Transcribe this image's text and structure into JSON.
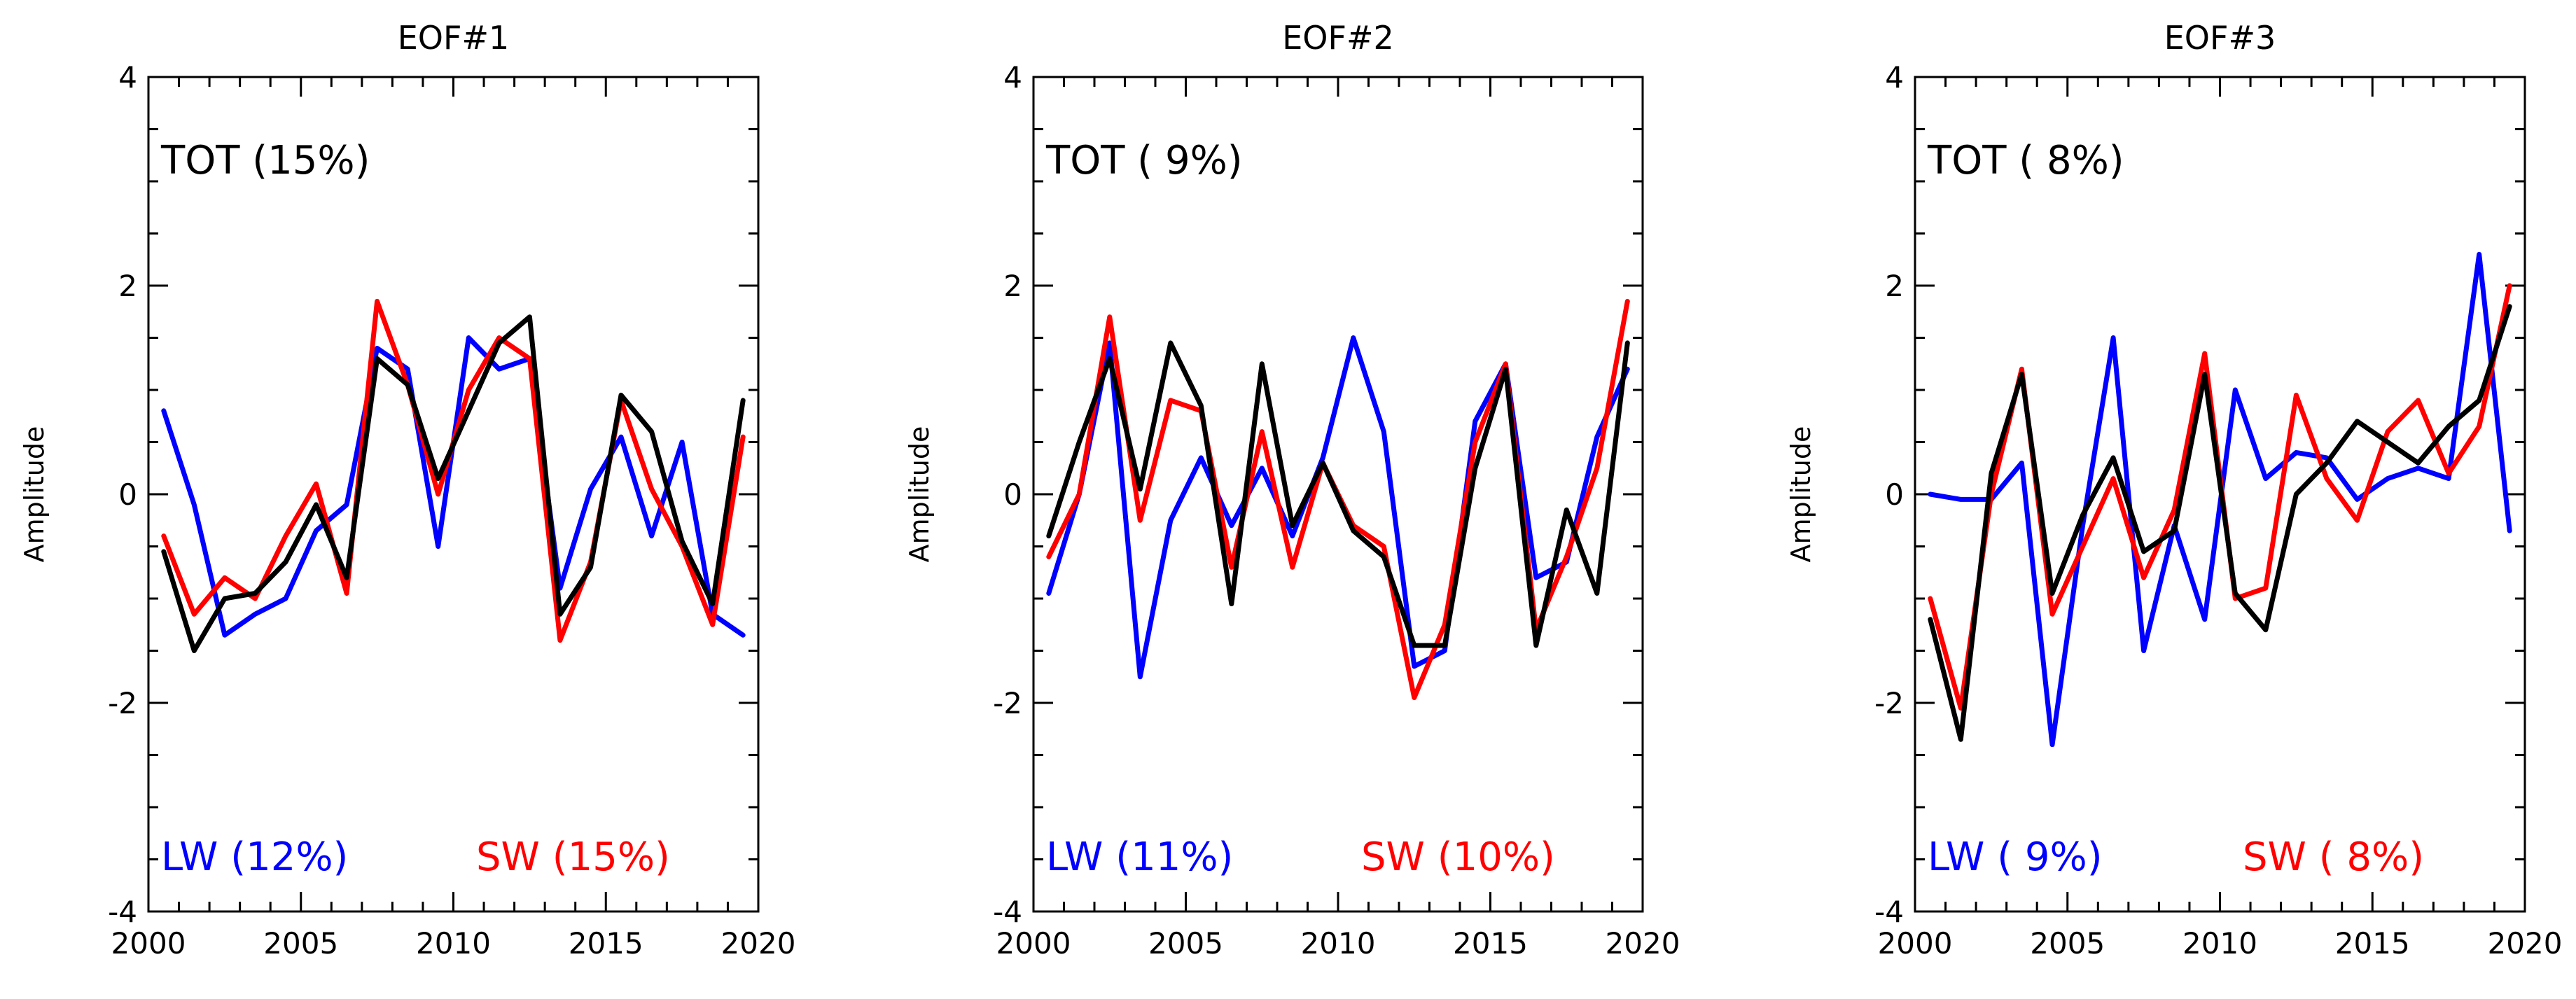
{
  "chart_data": [
    {
      "type": "line",
      "title": "EOF#1",
      "ylabel": "Amplitude",
      "xlabel": "",
      "xlim": [
        2000,
        2020
      ],
      "ylim": [
        -4,
        4
      ],
      "xticks": [
        2000,
        2005,
        2010,
        2015,
        2020
      ],
      "yticks": [
        -4,
        -2,
        0,
        2,
        4
      ],
      "annotations": {
        "tot": "TOT (15%)",
        "lw": "LW (12%)",
        "sw": "SW (15%)"
      },
      "x": [
        2000.5,
        2001.5,
        2002.5,
        2003.5,
        2004.5,
        2005.5,
        2006.5,
        2007.5,
        2008.5,
        2009.5,
        2010.5,
        2011.5,
        2012.5,
        2013.5,
        2014.5,
        2015.5,
        2016.5,
        2017.5,
        2018.5,
        2019.5
      ],
      "series": [
        {
          "name": "TOT",
          "color": "#000000",
          "values": [
            -0.55,
            -1.5,
            -1.0,
            -0.95,
            -0.65,
            -0.1,
            -0.8,
            1.3,
            1.05,
            0.15,
            0.8,
            1.45,
            1.7,
            -1.15,
            -0.7,
            0.95,
            0.6,
            -0.45,
            -1.05,
            0.9
          ]
        },
        {
          "name": "LW",
          "color": "#0000ff",
          "values": [
            0.8,
            -0.1,
            -1.35,
            -1.15,
            -1.0,
            -0.35,
            -0.1,
            1.4,
            1.2,
            -0.5,
            1.5,
            1.2,
            1.3,
            -0.9,
            0.05,
            0.55,
            -0.4,
            0.5,
            -1.15,
            -1.35
          ]
        },
        {
          "name": "SW",
          "color": "#ff0000",
          "values": [
            -0.4,
            -1.15,
            -0.8,
            -1.0,
            -0.4,
            0.1,
            -0.95,
            1.85,
            1.05,
            0.0,
            1.0,
            1.5,
            1.3,
            -1.4,
            -0.65,
            0.9,
            0.05,
            -0.5,
            -1.25,
            0.55
          ]
        }
      ]
    },
    {
      "type": "line",
      "title": "EOF#2",
      "ylabel": "Amplitude",
      "xlabel": "",
      "xlim": [
        2000,
        2020
      ],
      "ylim": [
        -4,
        4
      ],
      "xticks": [
        2000,
        2005,
        2010,
        2015,
        2020
      ],
      "yticks": [
        -4,
        -2,
        0,
        2,
        4
      ],
      "annotations": {
        "tot": "TOT ( 9%)",
        "lw": "LW (11%)",
        "sw": "SW (10%)"
      },
      "x": [
        2000.5,
        2001.5,
        2002.5,
        2003.5,
        2004.5,
        2005.5,
        2006.5,
        2007.5,
        2008.5,
        2009.5,
        2010.5,
        2011.5,
        2012.5,
        2013.5,
        2014.5,
        2015.5,
        2016.5,
        2017.5,
        2018.5,
        2019.5
      ],
      "series": [
        {
          "name": "TOT",
          "color": "#000000",
          "values": [
            -0.4,
            0.5,
            1.3,
            0.05,
            1.45,
            0.85,
            -1.05,
            1.25,
            -0.3,
            0.3,
            -0.35,
            -0.6,
            -1.45,
            -1.45,
            0.25,
            1.2,
            -1.45,
            -0.15,
            -0.95,
            1.45
          ]
        },
        {
          "name": "LW",
          "color": "#0000ff",
          "values": [
            -0.95,
            0.0,
            1.45,
            -1.75,
            -0.25,
            0.35,
            -0.3,
            0.25,
            -0.4,
            0.35,
            1.5,
            0.6,
            -1.65,
            -1.5,
            0.7,
            1.25,
            -0.8,
            -0.65,
            0.55,
            1.2
          ]
        },
        {
          "name": "SW",
          "color": "#ff0000",
          "values": [
            -0.6,
            0.0,
            1.7,
            -0.25,
            0.9,
            0.8,
            -0.7,
            0.6,
            -0.7,
            0.3,
            -0.3,
            -0.5,
            -1.95,
            -1.25,
            0.5,
            1.25,
            -1.3,
            -0.6,
            0.25,
            1.85
          ]
        }
      ]
    },
    {
      "type": "line",
      "title": "EOF#3",
      "ylabel": "Amplitude",
      "xlabel": "",
      "xlim": [
        2000,
        2020
      ],
      "ylim": [
        -4,
        4
      ],
      "xticks": [
        2000,
        2005,
        2010,
        2015,
        2020
      ],
      "yticks": [
        -4,
        -2,
        0,
        2,
        4
      ],
      "annotations": {
        "tot": "TOT ( 8%)",
        "lw": "LW ( 9%)",
        "sw": "SW ( 8%)"
      },
      "x": [
        2000.5,
        2001.5,
        2002.5,
        2003.5,
        2004.5,
        2005.5,
        2006.5,
        2007.5,
        2008.5,
        2009.5,
        2010.5,
        2011.5,
        2012.5,
        2013.5,
        2014.5,
        2015.5,
        2016.5,
        2017.5,
        2018.5,
        2019.5
      ],
      "series": [
        {
          "name": "TOT",
          "color": "#000000",
          "values": [
            -1.2,
            -2.35,
            0.2,
            1.15,
            -0.95,
            -0.2,
            0.35,
            -0.55,
            -0.35,
            1.15,
            -0.95,
            -1.3,
            0.0,
            0.3,
            0.7,
            0.5,
            0.3,
            0.65,
            0.9,
            1.8
          ]
        },
        {
          "name": "LW",
          "color": "#0000ff",
          "values": [
            0.0,
            -0.05,
            -0.05,
            0.3,
            -2.4,
            -0.3,
            1.5,
            -1.5,
            -0.3,
            -1.2,
            1.0,
            0.15,
            0.4,
            0.35,
            -0.05,
            0.15,
            0.25,
            0.15,
            2.3,
            -0.35
          ]
        },
        {
          "name": "SW",
          "color": "#ff0000",
          "values": [
            -1.0,
            -2.05,
            0.0,
            1.2,
            -1.15,
            -0.5,
            0.15,
            -0.8,
            -0.15,
            1.35,
            -1.0,
            -0.9,
            0.95,
            0.15,
            -0.25,
            0.6,
            0.9,
            0.2,
            0.65,
            2.0
          ]
        }
      ]
    }
  ]
}
